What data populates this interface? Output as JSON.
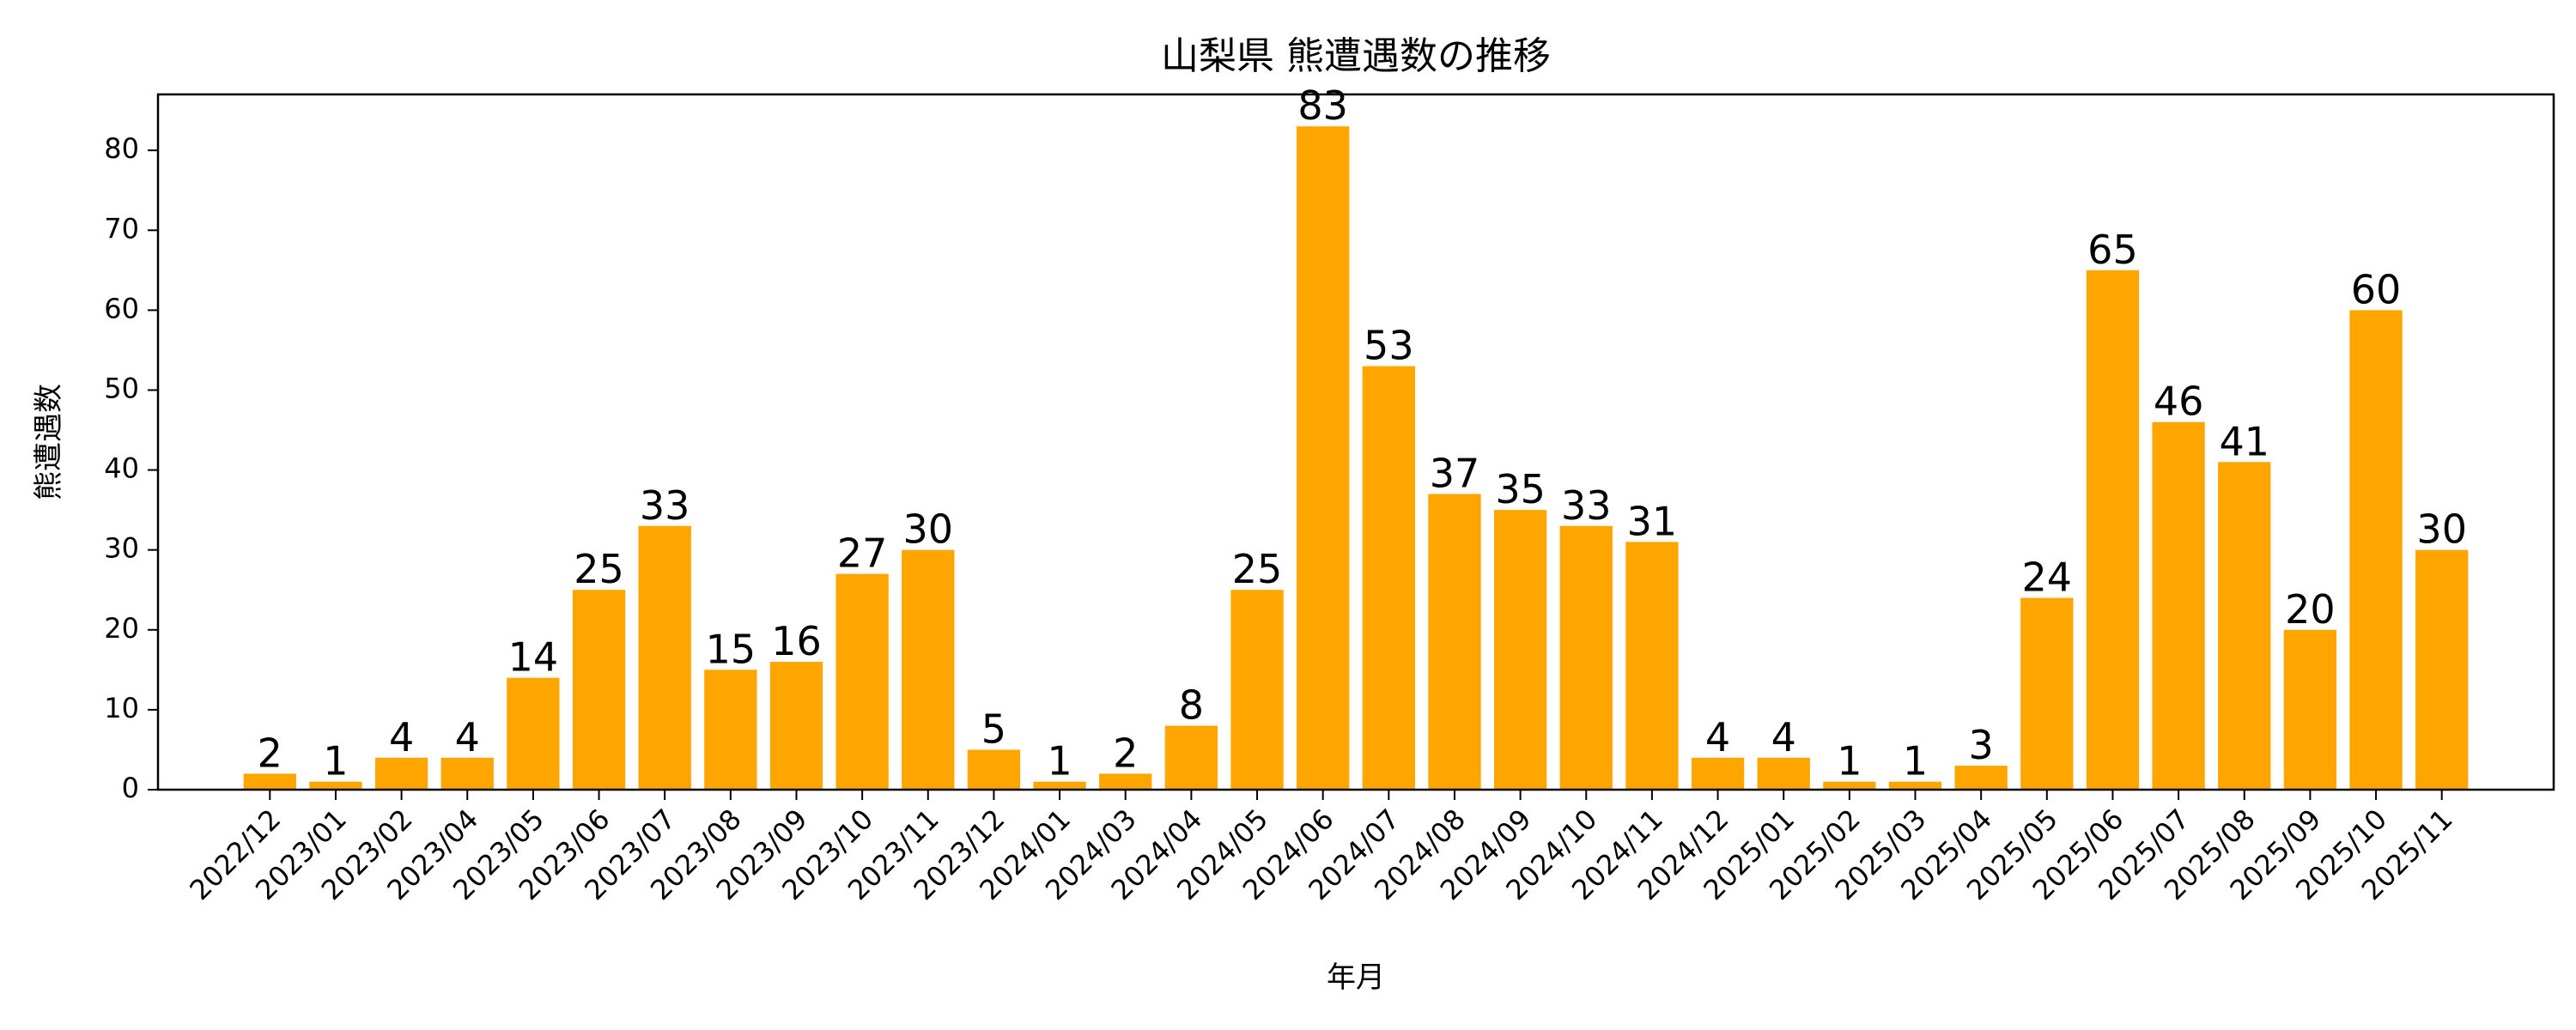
{
  "chart_data": {
    "type": "bar",
    "title": "山梨県 熊遭遇数の推移",
    "xlabel": "年月",
    "ylabel": "熊遭遇数",
    "categories": [
      "2022/12",
      "2023/01",
      "2023/02",
      "2023/04",
      "2023/05",
      "2023/06",
      "2023/07",
      "2023/08",
      "2023/09",
      "2023/10",
      "2023/11",
      "2023/12",
      "2024/01",
      "2024/03",
      "2024/04",
      "2024/05",
      "2024/06",
      "2024/07",
      "2024/08",
      "2024/09",
      "2024/10",
      "2024/11",
      "2024/12",
      "2025/01",
      "2025/02",
      "2025/03",
      "2025/04",
      "2025/05",
      "2025/06",
      "2025/07",
      "2025/08",
      "2025/09",
      "2025/10",
      "2025/11"
    ],
    "values": [
      2,
      1,
      4,
      4,
      14,
      25,
      33,
      15,
      16,
      27,
      30,
      5,
      1,
      2,
      8,
      25,
      83,
      53,
      37,
      35,
      33,
      31,
      4,
      4,
      1,
      1,
      3,
      24,
      65,
      46,
      41,
      20,
      60,
      30
    ],
    "ylim": [
      0,
      87
    ],
    "yticks": [
      0,
      10,
      20,
      30,
      40,
      50,
      60,
      70,
      80
    ],
    "data_labels": true,
    "grid": false,
    "legend": "none",
    "bar_color": "#FFA500"
  }
}
